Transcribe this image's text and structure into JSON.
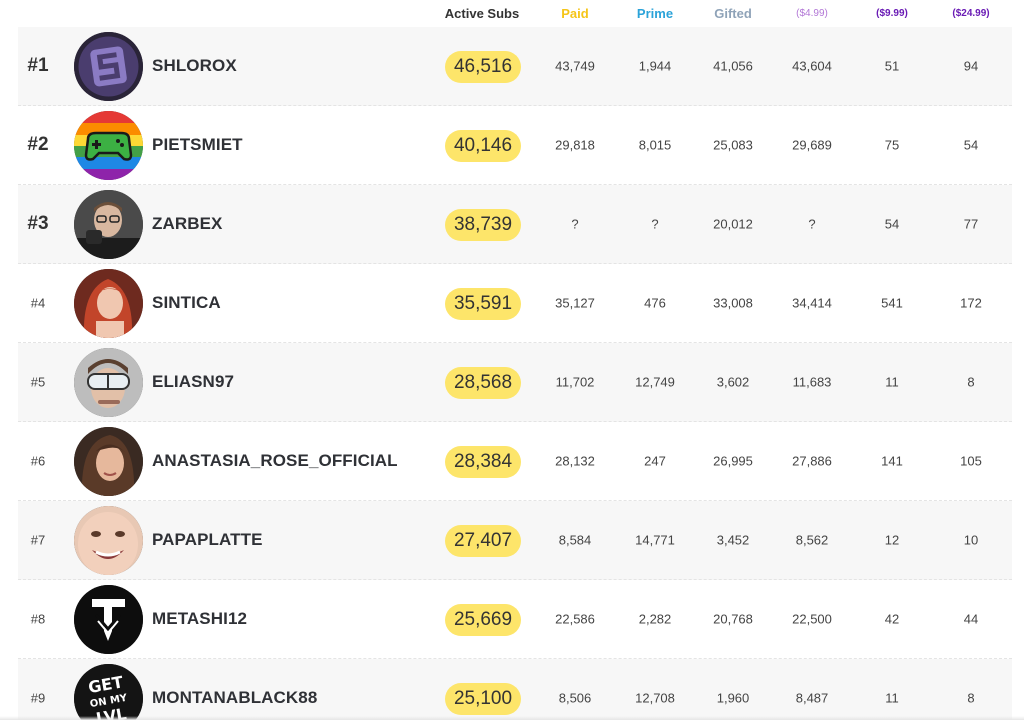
{
  "header": {
    "active_subs": "Active Subs",
    "paid": "Paid",
    "prime": "Prime",
    "gifted": "Gifted",
    "tier1": "($4.99)",
    "tier2": "($9.99)",
    "tier3": "($24.99)"
  },
  "colors": {
    "paid": "#f5c518",
    "prime": "#2ba3d9",
    "gifted": "#8fa3b8",
    "tier1": "#b277d6",
    "tier2": "#6a1bb5",
    "tier3": "#6a1bb5",
    "pill": "#fde56a"
  },
  "rows": [
    {
      "rank": "#1",
      "name": "SHLOROX",
      "active": "46,516",
      "paid": "43,749",
      "prime": "1,944",
      "gifted": "41,056",
      "t1": "43,604",
      "t2": "51",
      "t3": "94",
      "avatar": "purple-s-logo"
    },
    {
      "rank": "#2",
      "name": "PIETSMIET",
      "active": "40,146",
      "paid": "29,818",
      "prime": "8,015",
      "gifted": "25,083",
      "t1": "29,689",
      "t2": "75",
      "t3": "54",
      "avatar": "rainbow-gamepad-logo"
    },
    {
      "rank": "#3",
      "name": "ZARBEX",
      "active": "38,739",
      "paid": "?",
      "prime": "?",
      "gifted": "20,012",
      "t1": "?",
      "t2": "54",
      "t3": "77",
      "avatar": "man-with-glasses-photo"
    },
    {
      "rank": "#4",
      "name": "SINTICA",
      "active": "35,591",
      "paid": "35,127",
      "prime": "476",
      "gifted": "33,008",
      "t1": "34,414",
      "t2": "541",
      "t3": "172",
      "avatar": "red-haired-woman-photo"
    },
    {
      "rank": "#5",
      "name": "ELIASN97",
      "active": "28,568",
      "paid": "11,702",
      "prime": "12,749",
      "gifted": "3,602",
      "t1": "11,683",
      "t2": "11",
      "t3": "8",
      "avatar": "man-with-goggles-photo"
    },
    {
      "rank": "#6",
      "name": "ANASTASIA_ROSE_OFFICIAL",
      "active": "28,384",
      "paid": "28,132",
      "prime": "247",
      "gifted": "26,995",
      "t1": "27,886",
      "t2": "141",
      "t3": "105",
      "avatar": "brunette-woman-photo"
    },
    {
      "rank": "#7",
      "name": "PAPAPLATTE",
      "active": "27,407",
      "paid": "8,584",
      "prime": "14,771",
      "gifted": "3,452",
      "t1": "8,562",
      "t2": "12",
      "t3": "10",
      "avatar": "smiling-face-photo"
    },
    {
      "rank": "#8",
      "name": "METASHI12",
      "active": "25,669",
      "paid": "22,586",
      "prime": "2,282",
      "gifted": "20,768",
      "t1": "22,500",
      "t2": "42",
      "t3": "44",
      "avatar": "white-emblem-logo"
    },
    {
      "rank": "#9",
      "name": "MONTANABLACK88",
      "active": "25,100",
      "paid": "8,506",
      "prime": "12,708",
      "gifted": "1,960",
      "t1": "8,487",
      "t2": "11",
      "t3": "8",
      "avatar": "get-on-my-lvl-logo"
    }
  ]
}
